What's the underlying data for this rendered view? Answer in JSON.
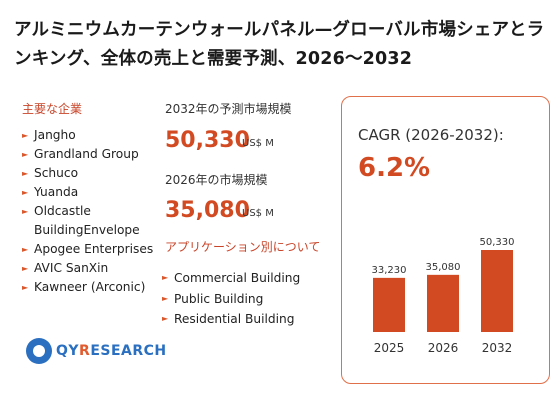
{
  "title": "アルミニウムカーテンウォールパネル—グローバル市場シェアとランキング、全体の売上と需要予測、2026～2032",
  "companies": {
    "heading": "主要な企業",
    "items": [
      "Jangho",
      "Grandland Group",
      "Schuco",
      "Yuanda",
      "Oldcastle",
      "BuildingEnvelope",
      "Apogee Enterprises",
      "AVIC SanXin",
      "Kawneer (Arconic)"
    ]
  },
  "metrics": {
    "m2032": {
      "label": "2032年の予測市場規模",
      "value": "50,330",
      "unit": "US$ M"
    },
    "m2026": {
      "label": "2026年の市場規模",
      "value": "35,080",
      "unit": "US$ M"
    }
  },
  "applications": {
    "heading": "アプリケーション別について",
    "items": [
      "Commercial Building",
      "Public Building",
      "Residential Building"
    ]
  },
  "cagr": {
    "label": "CAGR (2026-2032):",
    "value": "6.2%"
  },
  "chart_data": {
    "type": "bar",
    "categories": [
      "2025",
      "2026",
      "2032"
    ],
    "values": [
      33230,
      35080,
      50330
    ],
    "data_labels": [
      "33,230",
      "35,080",
      "50,330"
    ],
    "bar_color": "#d24a22"
  },
  "logo": {
    "main": "QY",
    "accent": "R",
    "rest": "ESEARCH"
  }
}
